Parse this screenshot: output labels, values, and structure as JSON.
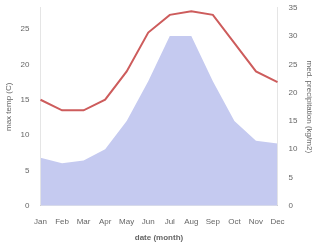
{
  "chart_data": {
    "type": "line",
    "xlabel": "date (month)",
    "ylabel": "max temp (C)",
    "y2label": "med. precipitation (kg/m2)",
    "categories": [
      "Jan",
      "Feb",
      "Mar",
      "Apr",
      "May",
      "Jun",
      "Jul",
      "Aug",
      "Sep",
      "Oct",
      "Nov",
      "Dec"
    ],
    "series": [
      {
        "type": "area",
        "axis": "y2",
        "color": "#c5caf0",
        "values": [
          8.5,
          7.5,
          8.0,
          10.0,
          15.0,
          22.0,
          30.0,
          30.0,
          22.0,
          15.0,
          11.5,
          11.0
        ]
      },
      {
        "type": "line",
        "color": "#cd5c5c",
        "values": [
          15.0,
          13.5,
          13.5,
          15.0,
          19.0,
          24.5,
          27.0,
          27.5,
          27.0,
          23.0,
          19.0,
          17.5
        ]
      }
    ],
    "ylim": [
      0,
      28
    ],
    "yticks": [
      0,
      5,
      10,
      15,
      20,
      25
    ],
    "y2lim": [
      0,
      35
    ],
    "y2ticks": [
      0,
      5,
      10,
      15,
      20,
      25,
      30,
      35
    ],
    "grid": false
  }
}
